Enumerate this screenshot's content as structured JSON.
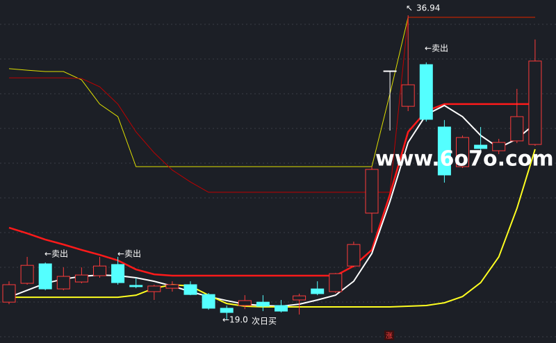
{
  "chart_data": {
    "type": "candlestick",
    "ylim": [
      17.61,
      37.84
    ],
    "grid": true,
    "up_color": "#ff3b3b",
    "down_color": "#54ffff",
    "flat_color": "#ffffff",
    "open": [
      20.02,
      21.13,
      22.28,
      20.8,
      21.21,
      21.58,
      22.24,
      21.01,
      20.64,
      20.84,
      21.05,
      20.47,
      19.66,
      19.82,
      20.02,
      19.82,
      20.15,
      20.8,
      20.64,
      22.15,
      25.27,
      33.66,
      31.57,
      34.03,
      30.35,
      28.01,
      29.28,
      28.95,
      29.53,
      29.32
    ],
    "close": [
      21.05,
      22.19,
      20.8,
      21.54,
      21.62,
      22.15,
      21.17,
      20.93,
      20.97,
      21.05,
      20.47,
      19.66,
      19.41,
      20.11,
      19.78,
      19.49,
      20.39,
      20.52,
      21.7,
      23.42,
      27.85,
      33.66,
      32.84,
      30.8,
      27.52,
      29.73,
      29.08,
      29.44,
      30.96,
      34.24
    ],
    "high": [
      21.25,
      22.69,
      22.36,
      22.07,
      22.07,
      22.69,
      22.69,
      21.46,
      21.05,
      21.25,
      21.25,
      20.56,
      19.82,
      20.43,
      20.43,
      20.15,
      20.52,
      21.25,
      21.74,
      23.59,
      28.01,
      33.66,
      36.94,
      34.16,
      30.76,
      29.85,
      30.35,
      29.65,
      32.6,
      35.51
    ],
    "low": [
      19.9,
      21.05,
      20.72,
      20.72,
      21.13,
      21.46,
      21.05,
      20.84,
      20.15,
      20.64,
      20.43,
      19.57,
      19.0,
      19.61,
      19.49,
      19.41,
      19.29,
      20.43,
      20.56,
      22.07,
      24.12,
      30.14,
      31.29,
      30.67,
      27.07,
      27.93,
      28.83,
      28.75,
      29.4,
      29.24
    ],
    "lines": [
      {
        "color": "#e0e000",
        "width": 1,
        "values": [
          33.79,
          33.7,
          33.62,
          33.62,
          33.13,
          31.7,
          30.96,
          28.01,
          28.01,
          28.01,
          28.01,
          28.01,
          28.01,
          28.01,
          28.01,
          28.01,
          28.01,
          28.01,
          28.01,
          28.01,
          28.01,
          32.31,
          36.82,
          36.82,
          36.82,
          36.82,
          36.82,
          36.82,
          36.82,
          36.82
        ]
      },
      {
        "color": "#c00000",
        "width": 1,
        "values": [
          33.25,
          33.25,
          33.25,
          33.25,
          33.21,
          32.72,
          31.7,
          30.06,
          28.83,
          27.81,
          27.11,
          26.5,
          26.5,
          26.5,
          26.5,
          26.5,
          26.5,
          26.5,
          26.5,
          26.5,
          26.5,
          26.5,
          36.82,
          36.82,
          36.82,
          36.82,
          36.82,
          36.82,
          36.82,
          36.82
        ]
      },
      {
        "color": "#ff1a1a",
        "width": 2.5,
        "values": [
          24.41,
          24.08,
          23.71,
          23.42,
          23.1,
          22.81,
          22.48,
          21.95,
          21.66,
          21.58,
          21.58,
          21.58,
          21.58,
          21.58,
          21.58,
          21.58,
          21.58,
          21.58,
          21.58,
          22.15,
          23.1,
          26.37,
          30.06,
          31.29,
          31.7,
          31.7,
          31.7,
          31.7,
          31.7,
          31.7
        ]
      },
      {
        "color": "#ffffff",
        "width": 2,
        "values": [
          20.31,
          20.72,
          21.13,
          21.38,
          21.54,
          21.62,
          21.58,
          21.46,
          21.25,
          20.97,
          20.64,
          20.35,
          20.11,
          19.9,
          19.82,
          19.78,
          19.9,
          20.15,
          20.43,
          21.25,
          22.89,
          25.96,
          29.44,
          31.08,
          31.62,
          30.96,
          29.85,
          29.12,
          29.65,
          30.55
        ]
      },
      {
        "color": "#ffff20",
        "width": 2,
        "values": [
          20.31,
          20.31,
          20.31,
          20.31,
          20.31,
          20.31,
          20.31,
          20.43,
          20.84,
          21.05,
          20.97,
          20.43,
          19.94,
          19.78,
          19.74,
          19.74,
          19.74,
          19.74,
          19.74,
          19.74,
          19.74,
          19.74,
          19.78,
          19.82,
          19.98,
          20.35,
          21.17,
          22.69,
          25.55,
          29.04
        ]
      }
    ],
    "annotations": [
      "←卖出",
      "←卖出",
      "←卖出",
      "←19.0",
      "次日买",
      "36.94"
    ],
    "watermark": "www.6o7o.com",
    "tag": "涨"
  }
}
